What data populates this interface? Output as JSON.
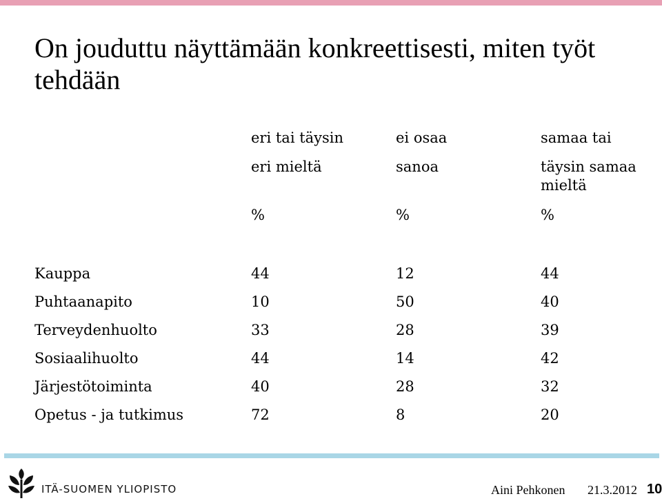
{
  "slide": {
    "title": "On jouduttu näyttämään konkreettisesti, miten työt tehdään"
  },
  "table": {
    "columns": [
      {
        "lines": [
          "eri tai täysin",
          "eri mieltä"
        ],
        "unit": "%"
      },
      {
        "lines": [
          "ei osaa",
          "sanoa"
        ],
        "unit": "%"
      },
      {
        "lines": [
          "samaa tai",
          "täysin samaa",
          "mieltä"
        ],
        "unit": "%"
      }
    ],
    "rows": [
      {
        "label": "Kauppa",
        "values": [
          "44",
          "12",
          "44"
        ]
      },
      {
        "label": "Puhtaanapito",
        "values": [
          "10",
          "50",
          "40"
        ]
      },
      {
        "label": "Terveydenhuolto",
        "values": [
          "33",
          "28",
          "39"
        ]
      },
      {
        "label": "Sosiaalihuolto",
        "values": [
          "44",
          "14",
          "42"
        ]
      },
      {
        "label": "Järjestötoiminta",
        "values": [
          "40",
          "28",
          "32"
        ]
      },
      {
        "label": "Opetus - ja tutkimus",
        "values": [
          "72",
          "8",
          "20"
        ]
      }
    ]
  },
  "footer": {
    "organization": "ITÄ-SUOMEN YLIOPISTO",
    "author": "Aini Pehkonen",
    "date": "21.3.2012",
    "page_number": "10",
    "logo_icon": "university-leaf-logo-icon"
  },
  "colors": {
    "top_bar": "#e8a0b4",
    "bottom_bar": "#a9d6e6"
  }
}
